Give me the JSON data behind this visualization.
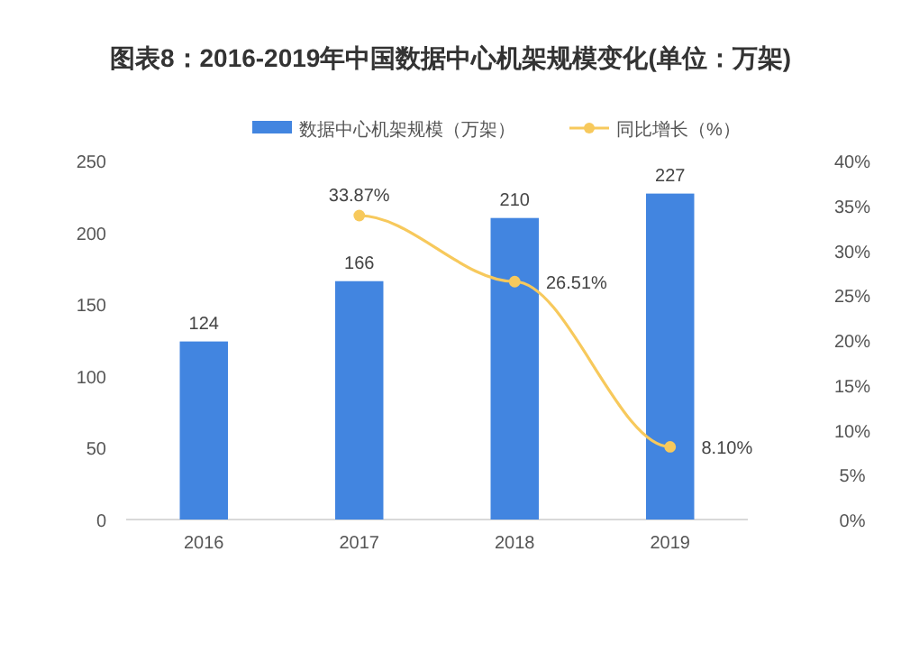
{
  "chart_data": {
    "type": "bar",
    "title": "图表8：2016-2019年中国数据中心机架规模变化(单位：万架)",
    "categories": [
      "2016",
      "2017",
      "2018",
      "2019"
    ],
    "series": [
      {
        "name": "数据中心机架规模（万架）",
        "color": "#4285e0",
        "values": [
          124,
          166,
          210,
          227
        ],
        "value_labels": [
          "124",
          "166",
          "210",
          "227"
        ]
      },
      {
        "name": "同比增长（%）",
        "type": "line",
        "axis": "y2",
        "color": "#f7c95c",
        "marker": "circle",
        "values": [
          null,
          33.87,
          26.51,
          8.1
        ],
        "value_labels": [
          null,
          "33.87%",
          "26.51%",
          "8.10%"
        ]
      }
    ],
    "ylim": [
      0,
      250
    ],
    "yticks": [
      0,
      50,
      100,
      150,
      200,
      250
    ],
    "y2lim": [
      0,
      40
    ],
    "y2ticks": [
      {
        "value": 0,
        "label": "0%"
      },
      {
        "value": 5,
        "label": "5%"
      },
      {
        "value": 10,
        "label": "10%"
      },
      {
        "value": 15,
        "label": "15%"
      },
      {
        "value": 20,
        "label": "20%"
      },
      {
        "value": 25,
        "label": "25%"
      },
      {
        "value": 30,
        "label": "30%"
      },
      {
        "value": 35,
        "label": "35%"
      },
      {
        "value": 40,
        "label": "40%"
      }
    ],
    "legend": "top",
    "grid": false
  }
}
